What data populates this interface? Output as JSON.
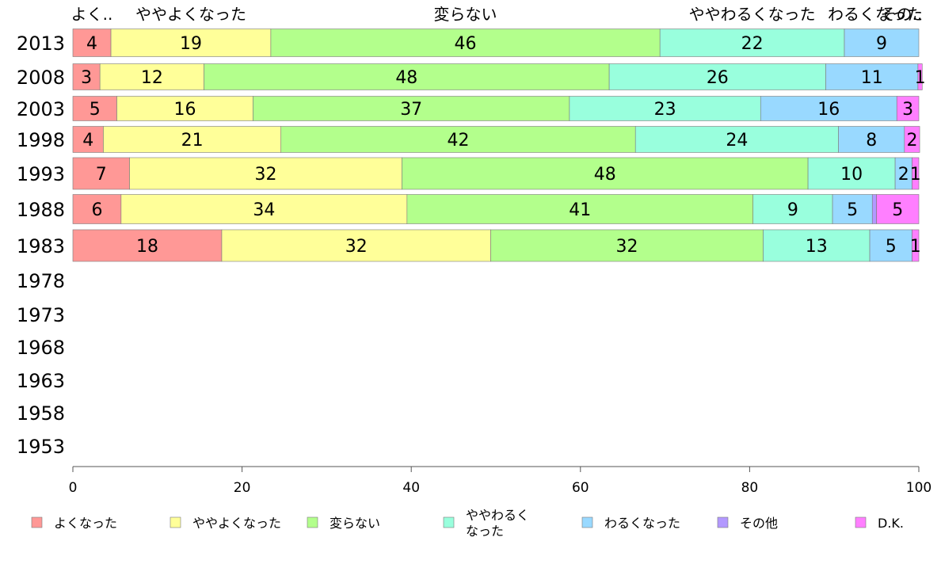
{
  "chart_data": {
    "type": "bar",
    "orientation": "horizontal",
    "stacked": true,
    "xlim": [
      0,
      100
    ],
    "x_ticks": [
      0,
      20,
      40,
      60,
      80,
      100
    ],
    "categories": [
      "2013",
      "2008",
      "2003",
      "1998",
      "1993",
      "1988",
      "1983",
      "1978",
      "1973",
      "1968",
      "1963",
      "1958",
      "1953"
    ],
    "top_labels": [
      "よく..",
      "ややよくなった",
      "変らない",
      "ややわるくなった",
      "わるくなった",
      "その.."
    ],
    "series": [
      {
        "name": "よくなった",
        "color": "#ff9896",
        "values": [
          4.5,
          3.2,
          5.2,
          3.6,
          6.7,
          5.7,
          17.6,
          null,
          null,
          null,
          null,
          null,
          null
        ],
        "labels": [
          "4",
          "3",
          "5",
          "4",
          "7",
          "6",
          "18",
          "",
          "",
          "",
          "",
          "",
          ""
        ]
      },
      {
        "name": "ややよくなった",
        "color": "#ffff99",
        "values": [
          18.9,
          12.3,
          16.1,
          21.0,
          32.2,
          33.8,
          31.8,
          null,
          null,
          null,
          null,
          null,
          null
        ],
        "labels": [
          "19",
          "12",
          "16",
          "21",
          "32",
          "34",
          "32",
          "",
          "",
          "",
          "",
          "",
          ""
        ]
      },
      {
        "name": "変らない",
        "color": "#b3ff8c",
        "values": [
          46.0,
          47.9,
          37.4,
          41.9,
          48.0,
          40.9,
          32.2,
          null,
          null,
          null,
          null,
          null,
          null
        ],
        "labels": [
          "46",
          "48",
          "37",
          "42",
          "48",
          "41",
          "32",
          "",
          "",
          "",
          "",
          "",
          ""
        ]
      },
      {
        "name": "ややわるくなった",
        "color": "#99ffdd",
        "values": [
          21.8,
          25.6,
          22.6,
          24.0,
          10.3,
          9.4,
          12.6,
          null,
          null,
          null,
          null,
          null,
          null
        ],
        "labels": [
          "22",
          "26",
          "23",
          "24",
          "10",
          "9",
          "13",
          "",
          "",
          "",
          "",
          "",
          ""
        ]
      },
      {
        "name": "わるくなった",
        "color": "#99d9ff",
        "values": [
          8.8,
          10.9,
          16.1,
          7.8,
          2.0,
          4.7,
          5.0,
          null,
          null,
          null,
          null,
          null,
          null
        ],
        "labels": [
          "9",
          "11",
          "16",
          "8",
          "2",
          "5",
          "5",
          "",
          "",
          "",
          "",
          "",
          ""
        ]
      },
      {
        "name": "その他",
        "color": "#b399ff",
        "values": [
          0.0,
          0.0,
          0.0,
          0.0,
          0.0,
          0.5,
          0.0,
          null,
          null,
          null,
          null,
          null,
          null
        ],
        "labels": [
          "",
          "",
          "",
          "",
          "",
          "",
          "",
          "",
          "",
          "",
          "",
          "",
          ""
        ]
      },
      {
        "name": "D.K.",
        "color": "#ff7fff",
        "values": [
          0.0,
          0.5,
          2.6,
          1.8,
          0.8,
          5.0,
          0.8,
          null,
          null,
          null,
          null,
          null,
          null
        ],
        "labels": [
          "",
          "1",
          "3",
          "2",
          "1",
          "5",
          "1",
          "",
          "",
          "",
          "",
          "",
          ""
        ]
      }
    ],
    "legend": {
      "position": "bottom",
      "labels": [
        "よくなった",
        "ややよくなった",
        "変らない",
        "ややわるく\nなった",
        "わるくなった",
        "その他",
        "D.K."
      ]
    },
    "grid": false
  }
}
